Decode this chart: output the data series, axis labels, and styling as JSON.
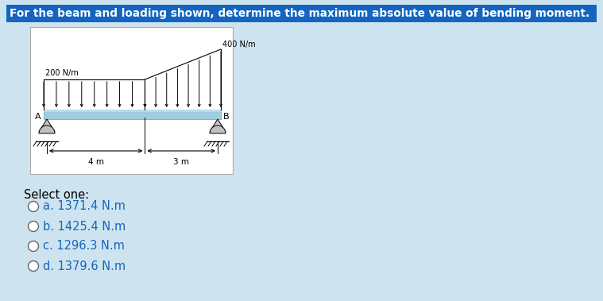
{
  "bg_color": "#cde4f0",
  "title_text": "For the beam and loading shown, determine the maximum absolute value of bending moment.",
  "title_bg": "#1565c0",
  "title_fg": "#ffffff",
  "beam_color_top": "#a8d4e8",
  "beam_color_bot": "#78b8d8",
  "load_left_label": "200 N/m",
  "load_right_label": "400 N/m",
  "dim_left": "4 m",
  "dim_right": "3 m",
  "label_A": "A",
  "label_B": "B",
  "select_text": "Select one:",
  "options": [
    "a. 1371.4 N.m",
    "b. 1425.4 N.m",
    "c. 1296.3 N.m",
    "d. 1379.6 N.m"
  ],
  "option_color": "#1565c0"
}
